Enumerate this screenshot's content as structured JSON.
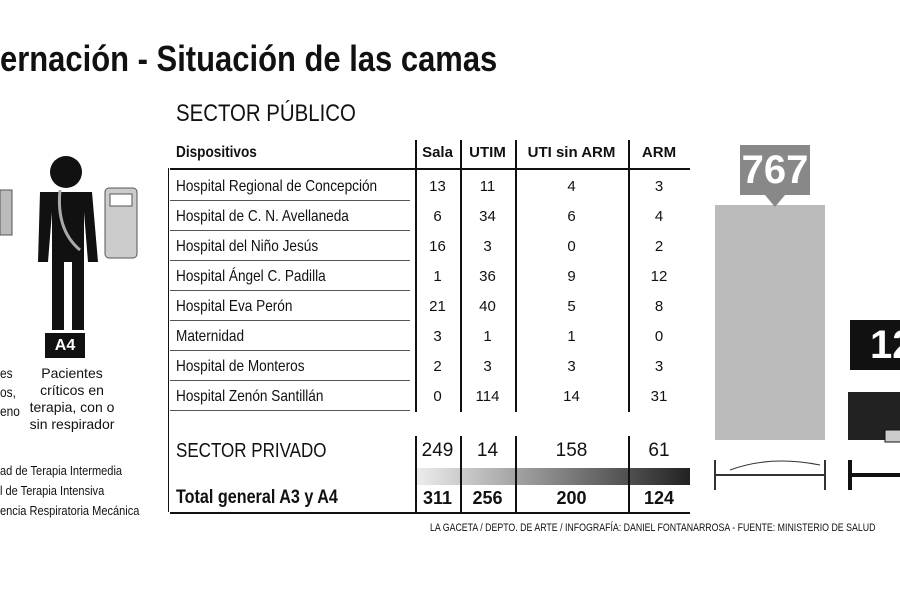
{
  "title": "ernación - Situación de las camas",
  "left_panel": {
    "cut_lines": [
      "es",
      "os,",
      "eno"
    ],
    "badge": "A4",
    "caption": [
      "Pacientes",
      "críticos en",
      "terapia, con o",
      "sin respirador"
    ],
    "legend": [
      "ad de Terapia Intermedia",
      "l de Terapia Intensiva",
      "encia Respiratoria Mecánica"
    ]
  },
  "table": {
    "section": "SECTOR PÚBLICO",
    "headers": [
      "Dispositivos",
      "Sala",
      "UTIM",
      "UTI sin ARM",
      "ARM"
    ],
    "rows": [
      [
        "Hospital Regional de Concepción",
        13,
        11,
        4,
        3
      ],
      [
        "Hospital de C. N. Avellaneda",
        6,
        34,
        6,
        4
      ],
      [
        "Hospital del Niño Jesús",
        16,
        3,
        0,
        2
      ],
      [
        "Hospital Ángel C. Padilla",
        1,
        36,
        9,
        12
      ],
      [
        "Hospital Eva Perón",
        21,
        40,
        5,
        8
      ],
      [
        "Maternidad",
        3,
        1,
        1,
        0
      ],
      [
        "Hospital de Monteros",
        2,
        3,
        3,
        3
      ],
      [
        "Hospital Zenón Santillán",
        0,
        114,
        14,
        31
      ]
    ],
    "private_row": [
      "SECTOR PRIVADO",
      249,
      14,
      158,
      61
    ],
    "total_row": [
      "Total general A3 y A4",
      311,
      256,
      200,
      124
    ]
  },
  "right_panel": {
    "big_number": 767,
    "small_number": 12
  },
  "credit": "LA GACETA / DEPTO. DE ARTE / INFOGRAFÍA: DANIEL FONTANARROSA - FUENTE: MINISTERIO DE SALUD"
}
